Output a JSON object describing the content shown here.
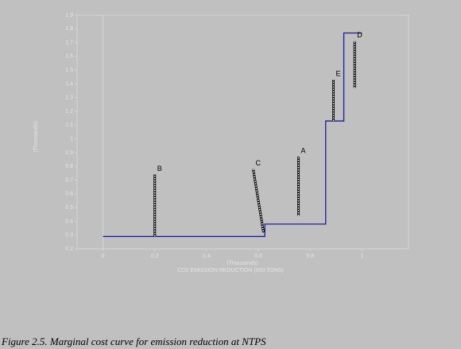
{
  "chart_data": {
    "type": "line",
    "y_label": "(Thousands)",
    "x_unit_label": "(Thousands)",
    "x_label": "CO2 EMISSION REDUCTION (000 TONS)",
    "x": [
      0,
      0.625,
      0.625,
      0.86,
      0.86,
      0.93,
      0.93,
      1.0
    ],
    "series": [
      {
        "color": "#1a1aa0",
        "values": [
          0.29,
          0.29,
          0.38,
          0.38,
          1.13,
          1.13,
          1.77,
          1.77
        ]
      }
    ],
    "segments": [
      {
        "label": "B",
        "x1": 0.2,
        "x2": 0.2,
        "y1": 0.29,
        "y2": 0.74
      },
      {
        "label": "C",
        "x1": 0.58,
        "x2": 0.62,
        "y1": 0.78,
        "y2": 0.32
      },
      {
        "label": "A",
        "x1": 0.755,
        "x2": 0.755,
        "y1": 0.44,
        "y2": 0.87
      },
      {
        "label": "E",
        "x1": 0.89,
        "x2": 0.89,
        "y1": 1.13,
        "y2": 1.43
      },
      {
        "label": "D",
        "x1": 0.972,
        "x2": 0.972,
        "y1": 1.37,
        "y2": 1.71
      }
    ],
    "xlim": [
      -0.1,
      1.18
    ],
    "ylim": [
      0.2,
      1.9
    ],
    "xticks": [
      0,
      0.2,
      0.4,
      0.6,
      0.8,
      1
    ],
    "yticks": [
      0.2,
      0.3,
      0.4,
      0.5,
      0.6,
      0.7,
      0.8,
      0.9,
      1,
      1.1,
      1.2,
      1.3,
      1.4,
      1.5,
      1.6,
      1.7,
      1.8,
      1.9
    ]
  },
  "caption": "Figure 2.5. Marginal cost curve for emission reduction at NTPS"
}
